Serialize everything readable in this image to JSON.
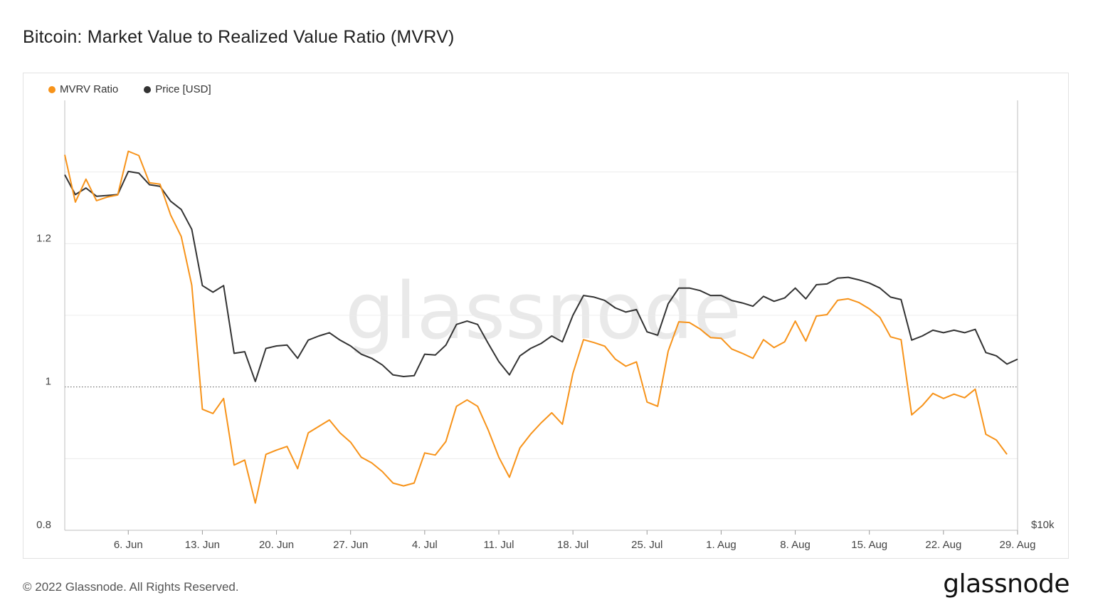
{
  "header": {
    "title": "Bitcoin: Market Value to Realized Value Ratio (MVRV)"
  },
  "footer": {
    "copyright": "© 2022 Glassnode. All Rights Reserved.",
    "brand": "glassnode"
  },
  "watermark": "glassnode",
  "colors": {
    "mvrv": "#f7931a",
    "price": "#333333",
    "grid": "#ececec",
    "axis": "#888888"
  },
  "chart_data": {
    "type": "line",
    "title": "Bitcoin: Market Value to Realized Value Ratio (MVRV)",
    "legend_position": "top-left",
    "x_tick_labels": [
      "6. Jun",
      "13. Jun",
      "20. Jun",
      "27. Jun",
      "4. Jul",
      "11. Jul",
      "18. Jul",
      "25. Jul",
      "1. Aug",
      "8. Aug",
      "15. Aug",
      "22. Aug",
      "29. Aug"
    ],
    "x_tick_day_index": [
      6,
      13,
      20,
      27,
      34,
      41,
      48,
      55,
      62,
      69,
      76,
      83,
      90
    ],
    "left_axis": {
      "label": "MVRV Ratio",
      "ylim": [
        0.8,
        1.4
      ],
      "ticks": [
        0.8,
        1,
        1.2
      ],
      "tick_labels": [
        "0.8",
        "1",
        "1.2"
      ]
    },
    "right_axis": {
      "label": "Price [USD]",
      "tick_labels": [
        "$10k"
      ]
    },
    "reference_line": {
      "value": 1,
      "style": "dotted"
    },
    "series": [
      {
        "name": "MVRV Ratio",
        "axis": "left",
        "x_start_day": 0,
        "values": [
          1.324,
          1.258,
          1.29,
          1.26,
          1.265,
          1.268,
          1.329,
          1.323,
          1.285,
          1.283,
          1.24,
          1.21,
          1.142,
          0.969,
          0.963,
          0.984,
          0.891,
          0.898,
          0.838,
          0.906,
          0.912,
          0.917,
          0.886,
          0.936,
          0.945,
          0.954,
          0.936,
          0.923,
          0.902,
          0.894,
          0.882,
          0.866,
          0.862,
          0.866,
          0.908,
          0.905,
          0.924,
          0.973,
          0.982,
          0.973,
          0.94,
          0.902,
          0.874,
          0.915,
          0.934,
          0.95,
          0.964,
          0.948,
          1.019,
          1.066,
          1.062,
          1.057,
          1.039,
          1.029,
          1.035,
          0.979,
          0.973,
          1.05,
          1.091,
          1.09,
          1.081,
          1.069,
          1.068,
          1.053,
          1.047,
          1.04,
          1.066,
          1.055,
          1.063,
          1.092,
          1.064,
          1.099,
          1.101,
          1.121,
          1.123,
          1.118,
          1.109,
          1.097,
          1.07,
          1.066,
          0.961,
          0.974,
          0.991,
          0.984,
          0.99,
          0.985,
          0.997,
          0.934,
          0.926,
          0.906
        ]
      },
      {
        "name": "Price [USD]",
        "axis": "right",
        "x_start_day": 0,
        "price_axis_range": [
          10000,
          36000
        ],
        "values": [
          31500,
          30300,
          30700,
          30200,
          30250,
          30300,
          31700,
          31600,
          30900,
          30800,
          29900,
          29400,
          28200,
          24800,
          24400,
          24800,
          20700,
          20800,
          19000,
          21000,
          21150,
          21200,
          20400,
          21500,
          21750,
          21950,
          21500,
          21150,
          20650,
          20400,
          20000,
          19400,
          19300,
          19350,
          20650,
          20600,
          21200,
          22450,
          22650,
          22450,
          21300,
          20200,
          19400,
          20550,
          21000,
          21300,
          21750,
          21400,
          23000,
          24200,
          24100,
          23900,
          23450,
          23200,
          23350,
          22000,
          21800,
          23700,
          24650,
          24650,
          24500,
          24200,
          24200,
          23900,
          23750,
          23550,
          24150,
          23850,
          24050,
          24650,
          24000,
          24850,
          24900,
          25250,
          25300,
          25150,
          24950,
          24650,
          24100,
          23950,
          21500,
          21750,
          22100,
          21950,
          22100,
          21950,
          22150,
          20750,
          20550,
          20050,
          20350
        ]
      }
    ]
  }
}
